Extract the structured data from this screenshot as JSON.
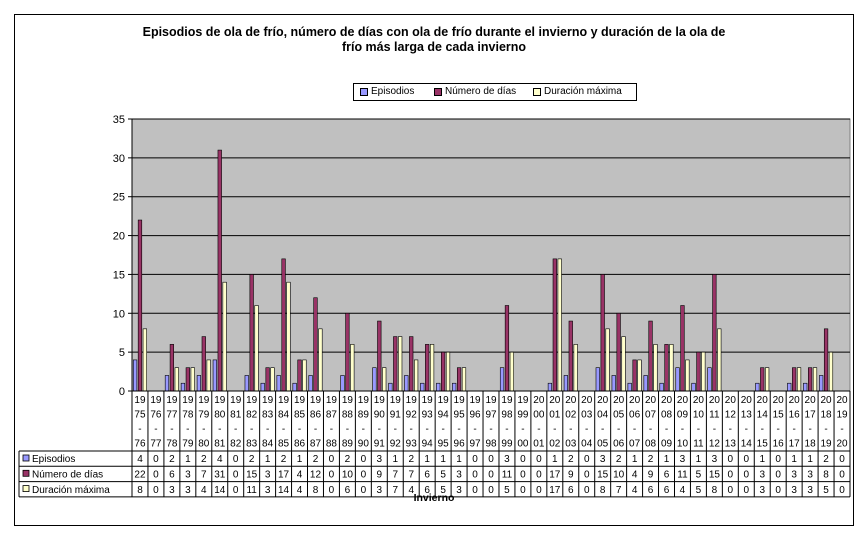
{
  "colors": {
    "plot_bg": "#C0C0C0",
    "episodios": "#9999FF",
    "dias": "#993366",
    "duracion": "#FFFFCC"
  },
  "chart_data": {
    "type": "bar",
    "title_line1": "Episodios de ola de frío, número de días con ola de frío durante el invierno y duración de la ola de",
    "title_line2": "frío más larga de cada invierno",
    "xlabel": "Invierno",
    "ylabel": "",
    "ylim": [
      0,
      35
    ],
    "yticks": [
      0,
      5,
      10,
      15,
      20,
      25,
      30,
      35
    ],
    "grid": true,
    "legend": "top-center",
    "categories": [
      [
        "19",
        "75",
        "-",
        "76"
      ],
      [
        "19",
        "76",
        "-",
        "77"
      ],
      [
        "19",
        "77",
        "-",
        "78"
      ],
      [
        "19",
        "78",
        "-",
        "79"
      ],
      [
        "19",
        "79",
        "-",
        "80"
      ],
      [
        "19",
        "80",
        "-",
        "81"
      ],
      [
        "19",
        "81",
        "-",
        "82"
      ],
      [
        "19",
        "82",
        "-",
        "83"
      ],
      [
        "19",
        "83",
        "-",
        "84"
      ],
      [
        "19",
        "84",
        "-",
        "85"
      ],
      [
        "19",
        "85",
        "-",
        "86"
      ],
      [
        "19",
        "86",
        "-",
        "87"
      ],
      [
        "19",
        "87",
        "-",
        "88"
      ],
      [
        "19",
        "88",
        "-",
        "89"
      ],
      [
        "19",
        "89",
        "-",
        "90"
      ],
      [
        "19",
        "90",
        "-",
        "91"
      ],
      [
        "19",
        "91",
        "-",
        "92"
      ],
      [
        "19",
        "92",
        "-",
        "93"
      ],
      [
        "19",
        "93",
        "-",
        "94"
      ],
      [
        "19",
        "94",
        "-",
        "95"
      ],
      [
        "19",
        "95",
        "-",
        "96"
      ],
      [
        "19",
        "96",
        "-",
        "97"
      ],
      [
        "19",
        "97",
        "-",
        "98"
      ],
      [
        "19",
        "98",
        "-",
        "99"
      ],
      [
        "19",
        "99",
        "-",
        "00"
      ],
      [
        "20",
        "00",
        "-",
        "01"
      ],
      [
        "20",
        "01",
        "-",
        "02"
      ],
      [
        "20",
        "02",
        "-",
        "03"
      ],
      [
        "20",
        "03",
        "-",
        "04"
      ],
      [
        "20",
        "04",
        "-",
        "05"
      ],
      [
        "20",
        "05",
        "-",
        "06"
      ],
      [
        "20",
        "06",
        "-",
        "07"
      ],
      [
        "20",
        "07",
        "-",
        "08"
      ],
      [
        "20",
        "08",
        "-",
        "09"
      ],
      [
        "20",
        "09",
        "-",
        "10"
      ],
      [
        "20",
        "10",
        "-",
        "11"
      ],
      [
        "20",
        "11",
        "-",
        "12"
      ],
      [
        "20",
        "12",
        "-",
        "13"
      ],
      [
        "20",
        "13",
        "-",
        "14"
      ],
      [
        "20",
        "14",
        "-",
        "15"
      ],
      [
        "20",
        "15",
        "-",
        "16"
      ],
      [
        "20",
        "16",
        "-",
        "17"
      ],
      [
        "20",
        "17",
        "-",
        "18"
      ],
      [
        "20",
        "18",
        "-",
        "19"
      ],
      [
        "20",
        "19",
        "-",
        "20"
      ]
    ],
    "series": [
      {
        "name": "Episodios",
        "values": [
          4,
          0,
          2,
          1,
          2,
          4,
          0,
          2,
          1,
          2,
          1,
          2,
          0,
          2,
          0,
          3,
          1,
          2,
          1,
          1,
          1,
          0,
          0,
          3,
          0,
          0,
          1,
          2,
          0,
          3,
          2,
          1,
          2,
          1,
          3,
          1,
          3,
          0,
          0,
          1,
          0,
          1,
          1,
          2,
          0
        ]
      },
      {
        "name": "Número de días",
        "values": [
          22,
          0,
          6,
          3,
          7,
          31,
          0,
          15,
          3,
          17,
          4,
          12,
          0,
          10,
          0,
          9,
          7,
          7,
          6,
          5,
          3,
          0,
          0,
          11,
          0,
          0,
          17,
          9,
          0,
          15,
          10,
          4,
          9,
          6,
          11,
          5,
          15,
          0,
          0,
          3,
          0,
          3,
          3,
          8,
          0
        ]
      },
      {
        "name": "Duración máxima",
        "values": [
          8,
          0,
          3,
          3,
          4,
          14,
          0,
          11,
          3,
          14,
          4,
          8,
          0,
          6,
          0,
          3,
          7,
          4,
          6,
          5,
          3,
          0,
          0,
          5,
          0,
          0,
          17,
          6,
          0,
          8,
          7,
          4,
          6,
          6,
          4,
          5,
          8,
          0,
          0,
          3,
          0,
          3,
          3,
          5,
          0
        ]
      }
    ]
  }
}
